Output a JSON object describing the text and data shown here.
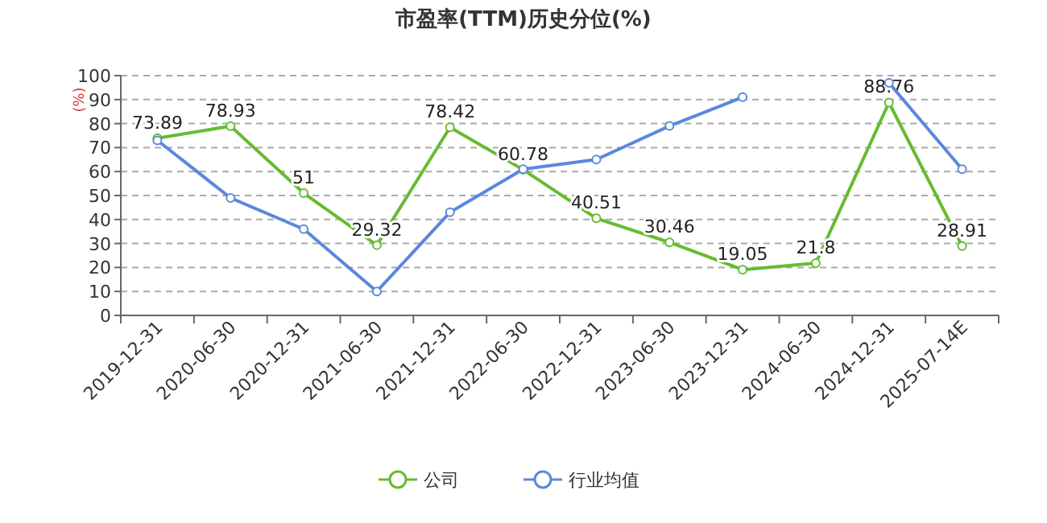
{
  "chart_data": {
    "type": "line",
    "title": "市盈率(TTM)历史分位(%)",
    "ylabel": "(%)",
    "categories": [
      "2019-12-31",
      "2020-06-30",
      "2020-12-31",
      "2021-06-30",
      "2021-12-31",
      "2022-06-30",
      "2022-12-31",
      "2023-06-30",
      "2023-12-31",
      "2024-06-30",
      "2024-12-31",
      "2025-07-14E"
    ],
    "series": [
      {
        "name": "公司",
        "color": "#66bb33",
        "values": [
          73.89,
          78.93,
          51,
          29.32,
          78.42,
          60.78,
          40.51,
          30.46,
          19.05,
          21.8,
          88.76,
          28.91
        ],
        "data_labels": true
      },
      {
        "name": "行业均值",
        "color": "#5b88dd",
        "values": [
          73,
          49,
          36,
          10,
          43,
          61,
          65,
          79,
          91,
          null,
          97,
          61
        ]
      }
    ],
    "ylim": [
      0,
      100
    ],
    "yticks": [
      0,
      10,
      20,
      30,
      40,
      50,
      60,
      70,
      80,
      90,
      100
    ],
    "grid": "y",
    "legend": "bottom",
    "marker": "circle",
    "line_style": "solid"
  }
}
